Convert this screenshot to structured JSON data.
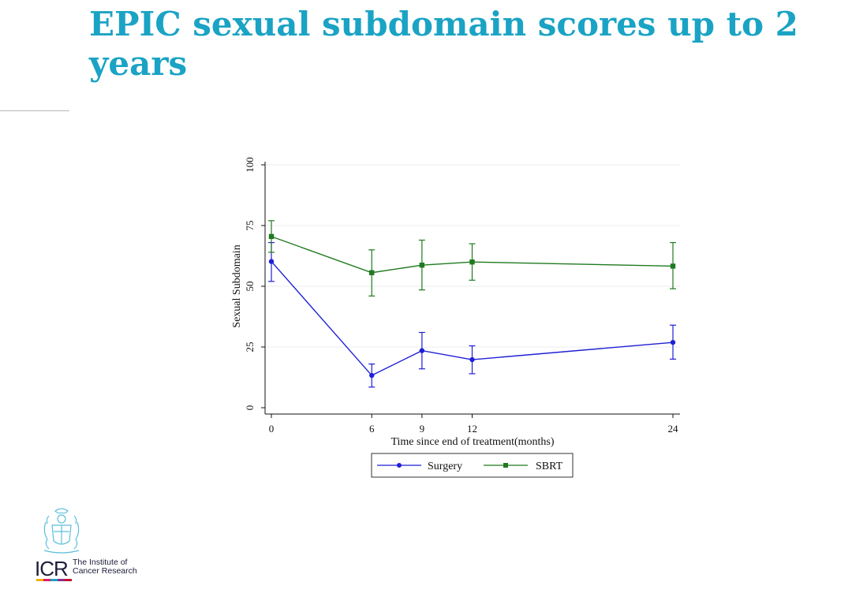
{
  "slide": {
    "title": "EPIC sexual subdomain scores up to 2 years"
  },
  "logo": {
    "abbr": "ICR",
    "line1": "The Institute of",
    "line2": "Cancer Research",
    "crest_icon": "icr-crest-icon",
    "bar_colors": [
      "#f2b200",
      "#e0196b",
      "#1aa3c4",
      "#8a2c8c",
      "#c8102e"
    ]
  },
  "chart_data": {
    "type": "line",
    "title": "",
    "xlabel": "Time since end of treatment(months)",
    "ylabel": "Sexual Subdomain",
    "xlim": [
      0,
      24
    ],
    "ylim": [
      0,
      100
    ],
    "x_ticks": [
      0,
      6,
      9,
      12,
      24
    ],
    "y_ticks": [
      0,
      25,
      50,
      75,
      100
    ],
    "grid": true,
    "legend_position": "bottom",
    "series": [
      {
        "name": "Surgery",
        "color": "#1f1fd6",
        "marker": "circle",
        "x": [
          0,
          6,
          9,
          12,
          24
        ],
        "y": [
          60.2,
          13.3,
          23.5,
          19.8,
          26.9
        ],
        "ci_low": [
          52,
          8.5,
          16,
          14,
          20
        ],
        "ci_high": [
          68,
          18,
          31,
          25.5,
          34
        ]
      },
      {
        "name": "SBRT",
        "color": "#1f7a1f",
        "marker": "square",
        "x": [
          0,
          6,
          9,
          12,
          24
        ],
        "y": [
          70.5,
          55.6,
          58.7,
          60,
          58.3
        ],
        "ci_low": [
          64,
          46,
          48.5,
          52.5,
          49
        ],
        "ci_high": [
          77,
          65,
          69,
          67.5,
          68
        ]
      }
    ]
  }
}
